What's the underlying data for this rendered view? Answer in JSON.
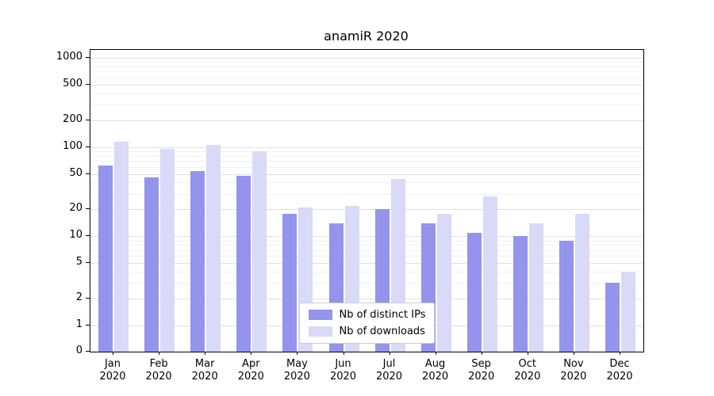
{
  "chart_data": {
    "type": "bar",
    "title": "anamiR 2020",
    "categories": [
      "Jan 2020",
      "Feb 2020",
      "Mar 2020",
      "Apr 2020",
      "May 2020",
      "Jun 2020",
      "Jul 2020",
      "Aug 2020",
      "Sep 2020",
      "Oct 2020",
      "Nov 2020",
      "Dec 2020"
    ],
    "series": [
      {
        "name": "Nb of distinct IPs",
        "color": "#9494ed",
        "values": [
          62,
          46,
          54,
          48,
          18,
          14,
          20,
          14,
          11,
          10,
          9,
          3
        ]
      },
      {
        "name": "Nb of downloads",
        "color": "#d9d9f8",
        "values": [
          115,
          95,
          105,
          90,
          21,
          22,
          44,
          18,
          28,
          14,
          18,
          4
        ]
      }
    ],
    "yscale": "symlog",
    "ylim": [
      0,
      1200
    ],
    "yticks": [
      0,
      1,
      2,
      5,
      10,
      20,
      50,
      100,
      200,
      500,
      1000
    ],
    "minor_gridlines": [
      3,
      4,
      6,
      7,
      8,
      9,
      30,
      40,
      60,
      70,
      80,
      90,
      300,
      400,
      600,
      700,
      800,
      900
    ],
    "grid": true,
    "legend_position": "lower center",
    "xlabel": "",
    "ylabel": ""
  },
  "colors": {
    "major_grid": "#e0e0e0",
    "minor_grid": "#f1f1f1",
    "spine": "#000000",
    "text": "#000000",
    "legend_border": "#cccccc",
    "background": "#ffffff"
  }
}
